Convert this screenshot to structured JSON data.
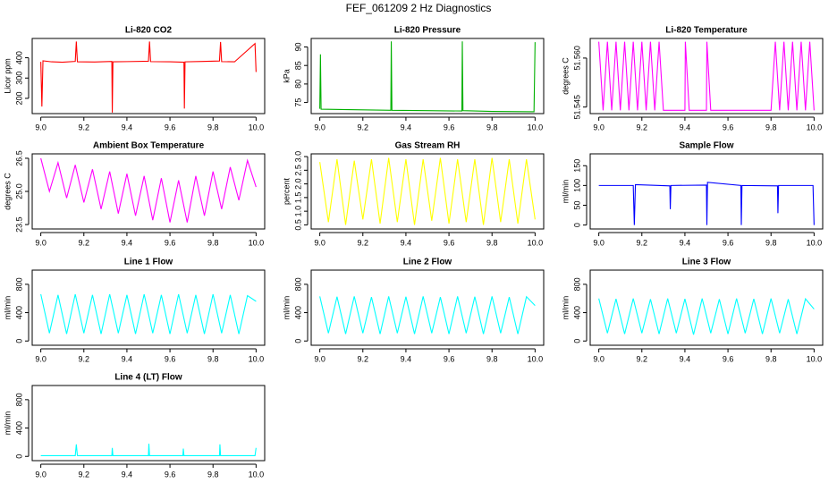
{
  "title": "FEF_061209  2 Hz Diagnostics",
  "chart_data": [
    {
      "type": "line",
      "title": "Li-820 CO2",
      "ylabel": "Licor ppm",
      "color": "#ff0000",
      "x": [
        9.0,
        9.005,
        9.01,
        9.05,
        9.1,
        9.16,
        9.165,
        9.17,
        9.25,
        9.33,
        9.332,
        9.335,
        9.4,
        9.5,
        9.505,
        9.51,
        9.6,
        9.665,
        9.667,
        9.67,
        9.75,
        9.83,
        9.835,
        9.84,
        9.9,
        9.995,
        10.0
      ],
      "values": [
        380,
        160,
        385,
        380,
        378,
        382,
        480,
        380,
        379,
        382,
        130,
        380,
        381,
        383,
        480,
        381,
        380,
        378,
        150,
        380,
        382,
        384,
        478,
        381,
        380,
        470,
        330
      ],
      "xlim": [
        8.96,
        10.04
      ],
      "xticks": [
        {
          "value": 9,
          "label": "9.0"
        },
        {
          "value": 9.2,
          "label": "9.2"
        },
        {
          "value": 9.4,
          "label": "9.4"
        },
        {
          "value": 9.6,
          "label": "9.6"
        },
        {
          "value": 9.8,
          "label": "9.8"
        },
        {
          "value": 10,
          "label": "10.0"
        }
      ],
      "ylim": [
        125,
        495
      ],
      "yticks": [
        200,
        300,
        400
      ]
    },
    {
      "type": "line",
      "title": "Li-820 Pressure",
      "ylabel": "kPa",
      "color": "#00b000",
      "x": [
        9.0,
        9.003,
        9.006,
        9.1,
        9.2,
        9.33,
        9.332,
        9.335,
        9.5,
        9.66,
        9.662,
        9.665,
        9.8,
        9.995,
        10.0
      ],
      "values": [
        73.3,
        88,
        73.2,
        73.1,
        73.0,
        72.9,
        91.5,
        72.9,
        72.8,
        72.7,
        91.5,
        72.8,
        72.6,
        72.5,
        91.3
      ],
      "xlim": [
        8.96,
        10.04
      ],
      "xticks": [
        {
          "value": 9,
          "label": "9.0"
        },
        {
          "value": 9.2,
          "label": "9.2"
        },
        {
          "value": 9.4,
          "label": "9.4"
        },
        {
          "value": 9.6,
          "label": "9.6"
        },
        {
          "value": 9.8,
          "label": "9.8"
        },
        {
          "value": 10,
          "label": "10.0"
        }
      ],
      "ylim": [
        72,
        92.3
      ],
      "yticks": [
        75,
        80,
        85,
        90
      ]
    },
    {
      "type": "line",
      "title": "Li-820 Temperature",
      "ylabel": "degrees C",
      "color": "#ff00ff",
      "x": [
        9.0,
        9.02,
        9.04,
        9.06,
        9.08,
        9.1,
        9.12,
        9.14,
        9.16,
        9.18,
        9.2,
        9.22,
        9.24,
        9.26,
        9.28,
        9.3,
        9.4,
        9.402,
        9.42,
        9.5,
        9.502,
        9.52,
        9.8,
        9.82,
        9.84,
        9.86,
        9.88,
        9.9,
        9.92,
        9.94,
        9.96,
        9.98,
        10.0
      ],
      "values": [
        51.565,
        51.544,
        51.565,
        51.544,
        51.565,
        51.544,
        51.565,
        51.544,
        51.565,
        51.544,
        51.565,
        51.544,
        51.565,
        51.544,
        51.565,
        51.544,
        51.544,
        51.565,
        51.544,
        51.544,
        51.565,
        51.544,
        51.544,
        51.565,
        51.544,
        51.565,
        51.544,
        51.565,
        51.544,
        51.565,
        51.544,
        51.565,
        51.544
      ],
      "xlim": [
        8.96,
        10.04
      ],
      "xticks": [
        {
          "value": 9,
          "label": "9.0"
        },
        {
          "value": 9.2,
          "label": "9.2"
        },
        {
          "value": 9.4,
          "label": "9.4"
        },
        {
          "value": 9.6,
          "label": "9.6"
        },
        {
          "value": 9.8,
          "label": "9.8"
        },
        {
          "value": 10,
          "label": "10.0"
        }
      ],
      "ylim": [
        51.543,
        51.566
      ],
      "yticks": [
        51.545,
        {
          "value": 51.56,
          "label": "51.560"
        }
      ]
    },
    {
      "type": "line",
      "title": "Ambient Box Temperature",
      "ylabel": "degrees C",
      "color": "#ff00ff",
      "x": [
        9.0,
        9.04,
        9.08,
        9.12,
        9.16,
        9.2,
        9.24,
        9.28,
        9.32,
        9.36,
        9.4,
        9.44,
        9.48,
        9.52,
        9.56,
        9.6,
        9.64,
        9.68,
        9.72,
        9.76,
        9.8,
        9.84,
        9.88,
        9.92,
        9.96,
        10.0
      ],
      "values": [
        26.5,
        25.0,
        26.3,
        24.7,
        26.2,
        24.5,
        26.0,
        24.2,
        25.9,
        24.0,
        25.8,
        23.9,
        25.7,
        23.7,
        25.6,
        23.6,
        25.5,
        23.6,
        25.7,
        23.9,
        25.9,
        24.2,
        26.1,
        24.6,
        26.4,
        25.2
      ],
      "xlim": [
        8.96,
        10.04
      ],
      "xticks": [
        {
          "value": 9,
          "label": "9.0"
        },
        {
          "value": 9.2,
          "label": "9.2"
        },
        {
          "value": 9.4,
          "label": "9.4"
        },
        {
          "value": 9.6,
          "label": "9.6"
        },
        {
          "value": 9.8,
          "label": "9.8"
        },
        {
          "value": 10,
          "label": "10.0"
        }
      ],
      "ylim": [
        23.3,
        26.7
      ],
      "yticks": [
        23.5,
        {
          "value": 25,
          "label": "25.0"
        },
        26.5
      ]
    },
    {
      "type": "line",
      "title": "Gas Stream RH",
      "ylabel": "percent",
      "color": "#ffff00",
      "x": [
        9.0,
        9.04,
        9.08,
        9.12,
        9.16,
        9.2,
        9.24,
        9.28,
        9.32,
        9.36,
        9.4,
        9.44,
        9.48,
        9.52,
        9.56,
        9.6,
        9.64,
        9.68,
        9.72,
        9.76,
        9.8,
        9.84,
        9.88,
        9.92,
        9.96,
        10.0
      ],
      "values": [
        2.8,
        0.6,
        2.9,
        0.5,
        2.85,
        0.7,
        2.9,
        0.55,
        2.95,
        0.6,
        2.9,
        0.5,
        2.9,
        0.65,
        2.95,
        0.55,
        2.9,
        0.6,
        2.9,
        0.5,
        2.95,
        0.6,
        2.9,
        0.55,
        2.9,
        0.7
      ],
      "xlim": [
        8.96,
        10.04
      ],
      "xticks": [
        {
          "value": 9,
          "label": "9.0"
        },
        {
          "value": 9.2,
          "label": "9.2"
        },
        {
          "value": 9.4,
          "label": "9.4"
        },
        {
          "value": 9.6,
          "label": "9.6"
        },
        {
          "value": 9.8,
          "label": "9.8"
        },
        {
          "value": 10,
          "label": "10.0"
        }
      ],
      "ylim": [
        0.35,
        3.1
      ],
      "yticks": [
        0.5,
        {
          "value": 1,
          "label": "1.0"
        },
        1.5,
        {
          "value": 2,
          "label": "2.0"
        },
        2.5,
        {
          "value": 3,
          "label": "3.0"
        }
      ]
    },
    {
      "type": "line",
      "title": "Sample Flow",
      "ylabel": "ml/min",
      "color": "#0000ff",
      "x": [
        9.0,
        9.16,
        9.165,
        9.17,
        9.33,
        9.332,
        9.335,
        9.5,
        9.502,
        9.505,
        9.66,
        9.662,
        9.665,
        9.83,
        9.832,
        9.835,
        9.995,
        10.0
      ],
      "values": [
        100,
        100,
        0,
        102,
        99,
        40,
        100,
        101,
        0,
        108,
        100,
        0,
        100,
        99,
        30,
        100,
        100,
        0
      ],
      "xlim": [
        8.96,
        10.04
      ],
      "xticks": [
        {
          "value": 9,
          "label": "9.0"
        },
        {
          "value": 9.2,
          "label": "9.2"
        },
        {
          "value": 9.4,
          "label": "9.4"
        },
        {
          "value": 9.6,
          "label": "9.6"
        },
        {
          "value": 9.8,
          "label": "9.8"
        },
        {
          "value": 10,
          "label": "10.0"
        }
      ],
      "ylim": [
        -10,
        180
      ],
      "yticks": [
        0,
        50,
        100,
        150
      ]
    },
    {
      "type": "line",
      "title": "Line 1 Flow",
      "ylabel": "ml/min",
      "color": "#00ffff",
      "x": [
        9.0,
        9.04,
        9.08,
        9.12,
        9.16,
        9.2,
        9.24,
        9.28,
        9.32,
        9.36,
        9.4,
        9.44,
        9.48,
        9.52,
        9.56,
        9.6,
        9.64,
        9.68,
        9.72,
        9.76,
        9.8,
        9.84,
        9.88,
        9.92,
        9.96,
        10.0
      ],
      "values": [
        660,
        110,
        650,
        100,
        660,
        110,
        650,
        100,
        660,
        110,
        650,
        100,
        660,
        110,
        650,
        100,
        660,
        110,
        650,
        100,
        660,
        110,
        650,
        100,
        640,
        560
      ],
      "xlim": [
        8.96,
        10.04
      ],
      "xticks": [
        {
          "value": 9,
          "label": "9.0"
        },
        {
          "value": 9.2,
          "label": "9.2"
        },
        {
          "value": 9.4,
          "label": "9.4"
        },
        {
          "value": 9.6,
          "label": "9.6"
        },
        {
          "value": 9.8,
          "label": "9.8"
        },
        {
          "value": 10,
          "label": "10.0"
        }
      ],
      "ylim": [
        -60,
        1000
      ],
      "yticks": [
        0,
        400,
        800
      ]
    },
    {
      "type": "line",
      "title": "Line 2 Flow",
      "ylabel": "ml/min",
      "color": "#00ffff",
      "x": [
        9.0,
        9.04,
        9.08,
        9.12,
        9.16,
        9.2,
        9.24,
        9.28,
        9.32,
        9.36,
        9.4,
        9.44,
        9.48,
        9.52,
        9.56,
        9.6,
        9.64,
        9.68,
        9.72,
        9.76,
        9.8,
        9.84,
        9.88,
        9.92,
        9.96,
        10.0
      ],
      "values": [
        630,
        110,
        625,
        100,
        630,
        110,
        620,
        100,
        630,
        110,
        625,
        100,
        630,
        110,
        620,
        100,
        630,
        110,
        625,
        100,
        630,
        110,
        620,
        100,
        625,
        500
      ],
      "xlim": [
        8.96,
        10.04
      ],
      "xticks": [
        {
          "value": 9,
          "label": "9.0"
        },
        {
          "value": 9.2,
          "label": "9.2"
        },
        {
          "value": 9.4,
          "label": "9.4"
        },
        {
          "value": 9.6,
          "label": "9.6"
        },
        {
          "value": 9.8,
          "label": "9.8"
        },
        {
          "value": 10,
          "label": "10.0"
        }
      ],
      "ylim": [
        -60,
        1000
      ],
      "yticks": [
        0,
        400,
        800
      ]
    },
    {
      "type": "line",
      "title": "Line 3 Flow",
      "ylabel": "ml/min",
      "color": "#00ffff",
      "x": [
        9.0,
        9.04,
        9.08,
        9.12,
        9.16,
        9.2,
        9.24,
        9.28,
        9.32,
        9.36,
        9.4,
        9.44,
        9.48,
        9.52,
        9.56,
        9.6,
        9.64,
        9.68,
        9.72,
        9.76,
        9.8,
        9.84,
        9.88,
        9.92,
        9.96,
        10.0
      ],
      "values": [
        600,
        110,
        595,
        100,
        600,
        110,
        590,
        100,
        600,
        110,
        595,
        90,
        600,
        110,
        590,
        100,
        600,
        110,
        595,
        100,
        600,
        110,
        590,
        100,
        595,
        450
      ],
      "xlim": [
        8.96,
        10.04
      ],
      "xticks": [
        {
          "value": 9,
          "label": "9.0"
        },
        {
          "value": 9.2,
          "label": "9.2"
        },
        {
          "value": 9.4,
          "label": "9.4"
        },
        {
          "value": 9.6,
          "label": "9.6"
        },
        {
          "value": 9.8,
          "label": "9.8"
        },
        {
          "value": 10,
          "label": "10.0"
        }
      ],
      "ylim": [
        -60,
        1000
      ],
      "yticks": [
        0,
        400,
        800
      ]
    },
    {
      "type": "line",
      "title": "Line 4 (LT) Flow",
      "ylabel": "ml/min",
      "color": "#00ffff",
      "x": [
        9.0,
        9.16,
        9.165,
        9.17,
        9.33,
        9.332,
        9.335,
        9.5,
        9.502,
        9.505,
        9.66,
        9.662,
        9.665,
        9.83,
        9.832,
        9.835,
        9.995,
        10.0
      ],
      "values": [
        10,
        10,
        170,
        10,
        10,
        120,
        10,
        10,
        180,
        10,
        10,
        110,
        10,
        10,
        170,
        10,
        10,
        120
      ],
      "xlim": [
        8.96,
        10.04
      ],
      "xticks": [
        {
          "value": 9,
          "label": "9.0"
        },
        {
          "value": 9.2,
          "label": "9.2"
        },
        {
          "value": 9.4,
          "label": "9.4"
        },
        {
          "value": 9.6,
          "label": "9.6"
        },
        {
          "value": 9.8,
          "label": "9.8"
        },
        {
          "value": 10,
          "label": "10.0"
        }
      ],
      "ylim": [
        -60,
        1000
      ],
      "yticks": [
        0,
        400,
        800
      ]
    }
  ]
}
